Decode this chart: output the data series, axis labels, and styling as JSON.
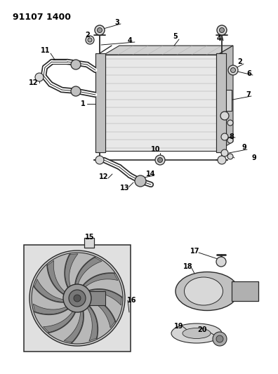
{
  "title": "91107 1400",
  "bg_color": "#ffffff",
  "lc": "#2a2a2a",
  "gray1": "#c0c0c0",
  "gray2": "#d8d8d8",
  "gray3": "#e8e8e8",
  "title_fs": 9,
  "label_fs": 7,
  "fig_w": 3.96,
  "fig_h": 5.33,
  "dpi": 100
}
